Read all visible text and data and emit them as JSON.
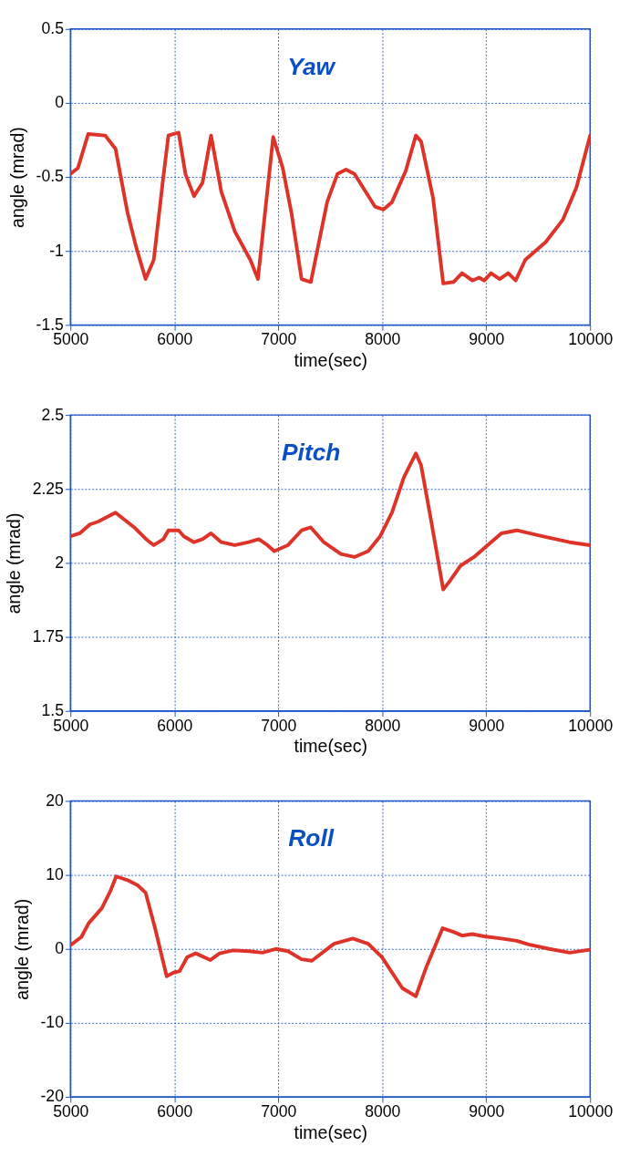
{
  "chart_data": [
    {
      "type": "line",
      "title": "Yaw",
      "xlabel": "time(sec)",
      "ylabel": "angle (mrad)",
      "xlim": [
        5000,
        10000
      ],
      "xticks": [
        5000,
        6000,
        7000,
        8000,
        9000,
        10000
      ],
      "ylim": [
        -1.5,
        0.5
      ],
      "yticks": [
        -1.5,
        -1,
        -0.5,
        0,
        0.5
      ],
      "grid": true,
      "series": [
        {
          "color": "#dd3328",
          "x": [
            5000,
            5072,
            5171,
            5335,
            5434,
            5549,
            5631,
            5723,
            5802,
            5894,
            5943,
            6041,
            6107,
            6189,
            6271,
            6353,
            6452,
            6583,
            6731,
            6804,
            6951,
            7043,
            7126,
            7224,
            7313,
            7470,
            7569,
            7651,
            7733,
            7930,
            8012,
            8094,
            8226,
            8324,
            8374,
            8489,
            8587,
            8686,
            8768,
            8867,
            8932,
            8982,
            9047,
            9130,
            9212,
            9284,
            9376,
            9573,
            9737,
            9869,
            10000
          ],
          "values": [
            -0.48,
            -0.44,
            -0.21,
            -0.22,
            -0.31,
            -0.74,
            -0.97,
            -1.19,
            -1.06,
            -0.5,
            -0.22,
            -0.2,
            -0.48,
            -0.63,
            -0.54,
            -0.22,
            -0.6,
            -0.87,
            -1.06,
            -1.19,
            -0.23,
            -0.44,
            -0.74,
            -1.19,
            -1.21,
            -0.67,
            -0.48,
            -0.45,
            -0.48,
            -0.7,
            -0.72,
            -0.67,
            -0.46,
            -0.22,
            -0.26,
            -0.64,
            -1.22,
            -1.21,
            -1.15,
            -1.2,
            -1.18,
            -1.2,
            -1.15,
            -1.19,
            -1.15,
            -1.2,
            -1.06,
            -0.94,
            -0.79,
            -0.57,
            -0.22
          ]
        }
      ]
    },
    {
      "type": "line",
      "title": "Pitch",
      "xlabel": "time(sec)",
      "ylabel": "angle (mrad)",
      "xlim": [
        5000,
        10000
      ],
      "xticks": [
        5000,
        6000,
        7000,
        8000,
        9000,
        10000
      ],
      "ylim": [
        1.5,
        2.5
      ],
      "yticks": [
        1.5,
        1.75,
        2,
        2.25,
        2.5
      ],
      "grid": true,
      "series": [
        {
          "color": "#dd3328",
          "x": [
            5000,
            5089,
            5187,
            5269,
            5434,
            5614,
            5729,
            5802,
            5894,
            5943,
            6041,
            6091,
            6189,
            6271,
            6353,
            6452,
            6583,
            6715,
            6813,
            6896,
            6961,
            7093,
            7224,
            7313,
            7438,
            7602,
            7733,
            7865,
            7980,
            8094,
            8209,
            8324,
            8374,
            8472,
            8587,
            8653,
            8752,
            8883,
            9014,
            9146,
            9294,
            9540,
            9803,
            10000
          ],
          "values": [
            2.09,
            2.1,
            2.13,
            2.14,
            2.17,
            2.12,
            2.08,
            2.06,
            2.08,
            2.11,
            2.11,
            2.09,
            2.07,
            2.08,
            2.1,
            2.07,
            2.06,
            2.07,
            2.08,
            2.06,
            2.04,
            2.06,
            2.11,
            2.12,
            2.07,
            2.03,
            2.02,
            2.04,
            2.09,
            2.17,
            2.29,
            2.37,
            2.33,
            2.14,
            1.91,
            1.94,
            1.99,
            2.02,
            2.06,
            2.1,
            2.11,
            2.09,
            2.07,
            2.06
          ]
        }
      ]
    },
    {
      "type": "line",
      "title": "Roll",
      "xlabel": "time(sec)",
      "ylabel": "angle (mrad)",
      "xlim": [
        5000,
        10000
      ],
      "xticks": [
        5000,
        6000,
        7000,
        8000,
        9000,
        10000
      ],
      "ylim": [
        -20,
        20
      ],
      "yticks": [
        -20,
        -10,
        0,
        10,
        20
      ],
      "grid": true,
      "series": [
        {
          "color": "#dd3328",
          "x": [
            5000,
            5105,
            5177,
            5302,
            5384,
            5440,
            5549,
            5647,
            5723,
            5811,
            5926,
            5992,
            6051,
            6124,
            6206,
            6347,
            6436,
            6567,
            6715,
            6846,
            6977,
            7093,
            7224,
            7323,
            7536,
            7717,
            7865,
            7996,
            8193,
            8324,
            8423,
            8581,
            8686,
            8768,
            8867,
            8982,
            9146,
            9294,
            9409,
            9606,
            9803,
            10000
          ],
          "values": [
            0.5,
            1.6,
            3.5,
            5.5,
            7.8,
            9.8,
            9.3,
            8.6,
            7.6,
            3.0,
            -3.7,
            -3.2,
            -3.0,
            -1.1,
            -0.6,
            -1.5,
            -0.6,
            -0.2,
            -0.3,
            -0.5,
            0,
            -0.3,
            -1.4,
            -1.6,
            0.7,
            1.4,
            0.7,
            -1.1,
            -5.3,
            -6.4,
            -2.5,
            2.8,
            2.3,
            1.8,
            2.0,
            1.7,
            1.4,
            1.1,
            0.6,
            0,
            -0.5,
            -0.1
          ]
        }
      ]
    }
  ]
}
